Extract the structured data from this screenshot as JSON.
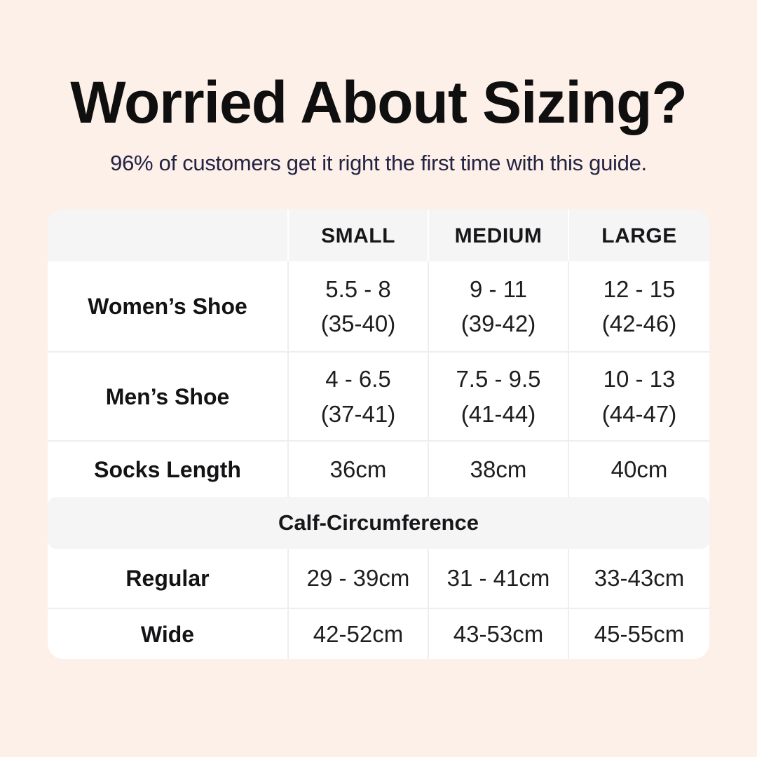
{
  "header": {
    "title": "Worried About Sizing?",
    "subtitle": "96% of customers get it right the first time with this guide."
  },
  "size_table": {
    "columns": [
      "SMALL",
      "MEDIUM",
      "LARGE"
    ],
    "shoe_rows": [
      {
        "label": "Women’s Shoe",
        "cells": [
          {
            "range": "5.5 - 8",
            "eu": "(35-40)"
          },
          {
            "range": "9 - 11",
            "eu": "(39-42)"
          },
          {
            "range": "12 - 15",
            "eu": "(42-46)"
          }
        ]
      },
      {
        "label": "Men’s Shoe",
        "cells": [
          {
            "range": "4 - 6.5",
            "eu": "(37-41)"
          },
          {
            "range": "7.5 - 9.5",
            "eu": "(41-44)"
          },
          {
            "range": "10 - 13",
            "eu": "(44-47)"
          }
        ]
      }
    ],
    "socks_row": {
      "label": "Socks Length",
      "cells": [
        "36cm",
        "38cm",
        "40cm"
      ]
    },
    "section_header": "Calf-Circumference",
    "calf_rows": [
      {
        "label": "Regular",
        "cells": [
          "29 - 39cm",
          "31 - 41cm",
          "33-43cm"
        ]
      },
      {
        "label": "Wide",
        "cells": [
          "42-52cm",
          "43-53cm",
          "45-55cm"
        ]
      }
    ]
  },
  "colors": {
    "page_background": "#fdf0e8",
    "card_background": "#ffffff",
    "header_band": "#f5f5f6",
    "subtitle_text": "#232344",
    "title_text": "#0f0f0f"
  },
  "chart_data": {
    "type": "table",
    "title": "Worried About Sizing?",
    "subtitle": "96% of customers get it right the first time with this guide.",
    "columns": [
      "",
      "SMALL",
      "MEDIUM",
      "LARGE"
    ],
    "rows": [
      [
        "Women’s Shoe",
        "5.5 - 8 (35-40)",
        "9 - 11 (39-42)",
        "12 - 15 (42-46)"
      ],
      [
        "Men’s Shoe",
        "4 - 6.5 (37-41)",
        "7.5 - 9.5 (41-44)",
        "10 - 13 (44-47)"
      ],
      [
        "Socks Length",
        "36cm",
        "38cm",
        "40cm"
      ],
      [
        "Calf-Circumference",
        "",
        "",
        ""
      ],
      [
        "Regular",
        "29 - 39cm",
        "31 - 41cm",
        "33-43cm"
      ],
      [
        "Wide",
        "42-52cm",
        "43-53cm",
        "45-55cm"
      ]
    ]
  }
}
